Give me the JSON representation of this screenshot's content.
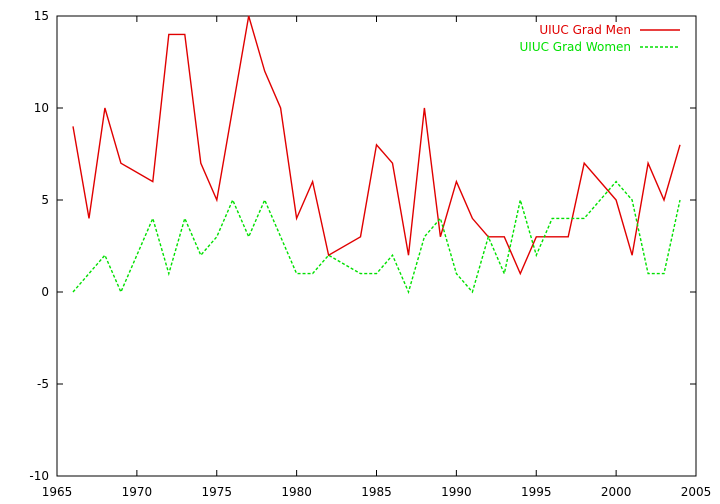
{
  "chart_data": {
    "type": "line",
    "title": "",
    "xlabel": "",
    "ylabel": "",
    "xlim": [
      1965,
      2005
    ],
    "ylim": [
      -10,
      15
    ],
    "x_ticks": [
      1965,
      1970,
      1975,
      1980,
      1985,
      1990,
      1995,
      2000,
      2005
    ],
    "y_ticks": [
      -10,
      -5,
      0,
      5,
      10,
      15
    ],
    "x_tick_labels": [
      "1965",
      "1970",
      "1975",
      "1980",
      "1985",
      "1990",
      "1995",
      "2000",
      "2005"
    ],
    "y_tick_labels": [
      "-10",
      "-5",
      "0",
      "5",
      "10",
      "15"
    ],
    "grid": false,
    "legend_position": "top-right",
    "series": [
      {
        "name": "UIUC Grad Men",
        "color": "#e00000",
        "style": "solid",
        "points": [
          [
            1966,
            9
          ],
          [
            1967,
            4
          ],
          [
            1968,
            10
          ],
          [
            1969,
            7
          ],
          [
            1971,
            6
          ],
          [
            1972,
            14
          ],
          [
            1973,
            14
          ],
          [
            1974,
            7
          ],
          [
            1975,
            5
          ],
          [
            1977,
            15
          ],
          [
            1978,
            12
          ],
          [
            1979,
            10
          ],
          [
            1980,
            4
          ],
          [
            1981,
            6
          ],
          [
            1982,
            2
          ],
          [
            1984,
            3
          ],
          [
            1985,
            8
          ],
          [
            1986,
            7
          ],
          [
            1987,
            2
          ],
          [
            1988,
            10
          ],
          [
            1989,
            3
          ],
          [
            1990,
            6
          ],
          [
            1991,
            4
          ],
          [
            1992,
            3
          ],
          [
            1993,
            3
          ],
          [
            1994,
            1
          ],
          [
            1995,
            3
          ],
          [
            1996,
            3
          ],
          [
            1997,
            3
          ],
          [
            1998,
            7
          ],
          [
            2000,
            5
          ],
          [
            2001,
            2
          ],
          [
            2002,
            7
          ],
          [
            2003,
            5
          ],
          [
            2004,
            8
          ]
        ]
      },
      {
        "name": "UIUC Grad Women",
        "color": "#00e000",
        "style": "dashed",
        "points": [
          [
            1966,
            0
          ],
          [
            1968,
            2
          ],
          [
            1969,
            0
          ],
          [
            1971,
            4
          ],
          [
            1972,
            1
          ],
          [
            1973,
            4
          ],
          [
            1974,
            2
          ],
          [
            1975,
            3
          ],
          [
            1976,
            5
          ],
          [
            1977,
            3
          ],
          [
            1978,
            5
          ],
          [
            1980,
            1
          ],
          [
            1981,
            1
          ],
          [
            1982,
            2
          ],
          [
            1984,
            1
          ],
          [
            1985,
            1
          ],
          [
            1986,
            2
          ],
          [
            1987,
            0
          ],
          [
            1988,
            3
          ],
          [
            1989,
            4
          ],
          [
            1990,
            1
          ],
          [
            1991,
            0
          ],
          [
            1992,
            3
          ],
          [
            1993,
            1
          ],
          [
            1994,
            5
          ],
          [
            1995,
            2
          ],
          [
            1996,
            4
          ],
          [
            1997,
            4
          ],
          [
            1998,
            4
          ],
          [
            2000,
            6
          ],
          [
            2001,
            5
          ],
          [
            2002,
            1
          ],
          [
            2003,
            1
          ],
          [
            2004,
            5
          ]
        ]
      }
    ]
  }
}
